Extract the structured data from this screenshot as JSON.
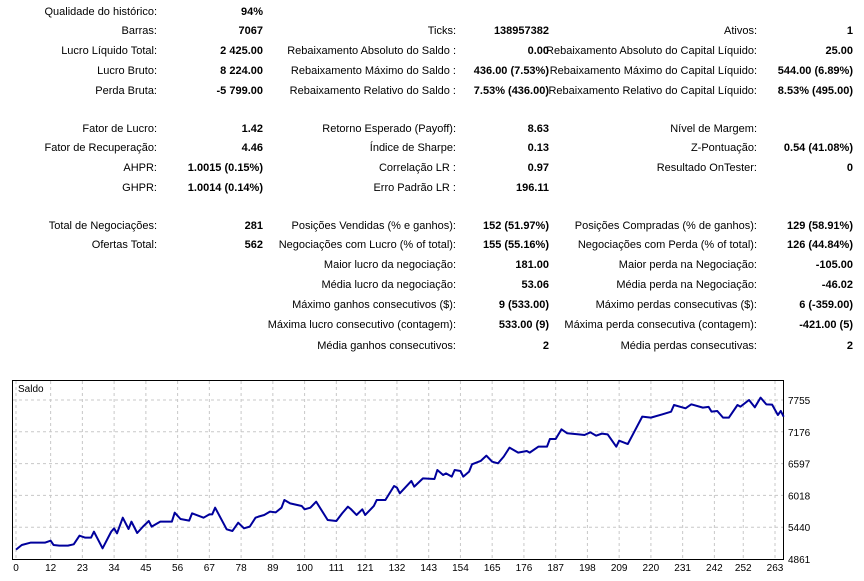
{
  "stats_rows": [
    {
      "l1": "Qualidade do histórico:",
      "v1": "94%",
      "l2": "",
      "v2": "",
      "l3": "",
      "v3": ""
    },
    {
      "l1": "Barras:",
      "v1": "7067",
      "l2": "Ticks:",
      "v2": "138957382",
      "l3": "Ativos:",
      "v3": "1"
    },
    {
      "l1": "Lucro Líquido Total:",
      "v1": "2 425.00",
      "l2": "Rebaixamento Absoluto do Saldo :",
      "v2": "0.00",
      "l3": "Rebaixamento Absoluto do Capital Líquido:",
      "v3": "25.00"
    },
    {
      "l1": "Lucro Bruto:",
      "v1": "8 224.00",
      "l2": "Rebaixamento Máximo do Saldo :",
      "v2": "436.00 (7.53%)",
      "l3": "Rebaixamento Máximo do Capital Líquido:",
      "v3": "544.00 (6.89%)"
    },
    {
      "l1": "Perda Bruta:",
      "v1": "-5 799.00",
      "l2": "Rebaixamento Relativo do Saldo :",
      "v2": "7.53% (436.00)",
      "l3": "Rebaixamento Relativo do Capital Líquido:",
      "v3": "8.53% (495.00)"
    },
    {
      "l1": "Fator de Lucro:",
      "v1": "1.42",
      "l2": "Retorno Esperado (Payoff):",
      "v2": "8.63",
      "l3": "Nível de Margem:",
      "v3": ""
    },
    {
      "l1": "Fator de Recuperação:",
      "v1": "4.46",
      "l2": "Índice de Sharpe:",
      "v2": "0.13",
      "l3": "Z-Pontuação:",
      "v3": "0.54 (41.08%)"
    },
    {
      "l1": "AHPR:",
      "v1": "1.0015 (0.15%)",
      "l2": "Correlação LR :",
      "v2": "0.97",
      "l3": "Resultado OnTester:",
      "v3": "0"
    },
    {
      "l1": "GHPR:",
      "v1": "1.0014 (0.14%)",
      "l2": "Erro Padrão LR :",
      "v2": "196.11",
      "l3": "",
      "v3": ""
    },
    {
      "l1": "Total de Negociações:",
      "v1": "281",
      "l2": "Posições Vendidas (% e ganhos):",
      "v2": "152 (51.97%)",
      "l3": "Posições Compradas (% de ganhos):",
      "v3": "129 (58.91%)"
    },
    {
      "l1": "Ofertas Total:",
      "v1": "562",
      "l2": "Negociações com Lucro (% of total):",
      "v2": "155 (55.16%)",
      "l3": "Negociações com Perda (% of total):",
      "v3": "126 (44.84%)"
    },
    {
      "l1": "",
      "v1": "",
      "l2": "Maior lucro da negociação:",
      "v2": "181.00",
      "l3": "Maior perda na Negociação:",
      "v3": "-105.00"
    },
    {
      "l1": "",
      "v1": "",
      "l2": "Média lucro da negociação:",
      "v2": "53.06",
      "l3": "Média perda na Negociação:",
      "v3": "-46.02"
    },
    {
      "l1": "",
      "v1": "",
      "l2": "Máximo ganhos consecutivos ($):",
      "v2": "9 (533.00)",
      "l3": "Máximo perdas consecutivas ($):",
      "v3": "6 (-359.00)"
    },
    {
      "l1": "",
      "v1": "",
      "l2": "Máxima lucro consecutivo (contagem):",
      "v2": "533.00 (9)",
      "l3": "Máxima perda consecutiva (contagem):",
      "v3": "-421.00 (5)"
    },
    {
      "l1": "",
      "v1": "",
      "l2": "Média ganhos consecutivos:",
      "v2": "2",
      "l3": "Média perdas consecutivas:",
      "v3": "2"
    }
  ],
  "chart_data": {
    "type": "line",
    "title": "Saldo",
    "line_color": "#00009c",
    "x_ticks": [
      0,
      12,
      23,
      34,
      45,
      56,
      67,
      78,
      89,
      100,
      111,
      121,
      132,
      143,
      154,
      165,
      176,
      187,
      198,
      209,
      220,
      231,
      242,
      252,
      263
    ],
    "y_ticks": [
      4861,
      5440,
      6018,
      6597,
      7176,
      7755
    ],
    "xlim": [
      0,
      263
    ],
    "ylim": [
      4861,
      7755
    ],
    "points": [
      [
        0,
        5031
      ],
      [
        2,
        5116
      ],
      [
        5,
        5158
      ],
      [
        10,
        5158
      ],
      [
        12,
        5195
      ],
      [
        13,
        5116
      ],
      [
        15,
        5104
      ],
      [
        18,
        5104
      ],
      [
        20,
        5128
      ],
      [
        22,
        5286
      ],
      [
        24,
        5249
      ],
      [
        26,
        5249
      ],
      [
        27,
        5359
      ],
      [
        30,
        5055
      ],
      [
        33,
        5359
      ],
      [
        34,
        5419
      ],
      [
        35,
        5328
      ],
      [
        37,
        5613
      ],
      [
        39,
        5407
      ],
      [
        40,
        5541
      ],
      [
        42,
        5334
      ],
      [
        44,
        5450
      ],
      [
        46,
        5553
      ],
      [
        47,
        5450
      ],
      [
        50,
        5541
      ],
      [
        54,
        5541
      ],
      [
        55,
        5704
      ],
      [
        57,
        5589
      ],
      [
        60,
        5559
      ],
      [
        61,
        5692
      ],
      [
        65,
        5613
      ],
      [
        67,
        5674
      ],
      [
        68,
        5674
      ],
      [
        69,
        5795
      ],
      [
        73,
        5401
      ],
      [
        75,
        5371
      ],
      [
        77,
        5522
      ],
      [
        79,
        5419
      ],
      [
        81,
        5450
      ],
      [
        83,
        5613
      ],
      [
        84,
        5632
      ],
      [
        86,
        5662
      ],
      [
        88,
        5723
      ],
      [
        90,
        5710
      ],
      [
        92,
        5795
      ],
      [
        93,
        5935
      ],
      [
        95,
        5874
      ],
      [
        99,
        5826
      ],
      [
        100,
        5765
      ],
      [
        102,
        5795
      ],
      [
        104,
        5905
      ],
      [
        108,
        5571
      ],
      [
        111,
        5553
      ],
      [
        113,
        5692
      ],
      [
        115,
        5813
      ],
      [
        116,
        5771
      ],
      [
        118,
        5662
      ],
      [
        120,
        5765
      ],
      [
        121,
        5662
      ],
      [
        124,
        5826
      ],
      [
        125,
        5935
      ],
      [
        128,
        5935
      ],
      [
        131,
        6190
      ],
      [
        132,
        6160
      ],
      [
        133,
        6056
      ],
      [
        137,
        6281
      ],
      [
        138,
        6178
      ],
      [
        141,
        6329
      ],
      [
        145,
        6317
      ],
      [
        146,
        6481
      ],
      [
        148,
        6390
      ],
      [
        149,
        6420
      ],
      [
        151,
        6360
      ],
      [
        152,
        6481
      ],
      [
        154,
        6463
      ],
      [
        155,
        6360
      ],
      [
        157,
        6451
      ],
      [
        158,
        6584
      ],
      [
        161,
        6645
      ],
      [
        163,
        6742
      ],
      [
        165,
        6632
      ],
      [
        167,
        6602
      ],
      [
        169,
        6724
      ],
      [
        171,
        6888
      ],
      [
        174,
        6797
      ],
      [
        177,
        6827
      ],
      [
        178,
        6797
      ],
      [
        181,
        6906
      ],
      [
        184,
        6906
      ],
      [
        185,
        7045
      ],
      [
        187,
        7045
      ],
      [
        189,
        7221
      ],
      [
        191,
        7149
      ],
      [
        195,
        7130
      ],
      [
        197,
        7118
      ],
      [
        199,
        7167
      ],
      [
        201,
        7106
      ],
      [
        203,
        7143
      ],
      [
        205,
        7130
      ],
      [
        208,
        6906
      ],
      [
        209,
        7015
      ],
      [
        212,
        6954
      ],
      [
        217,
        7452
      ],
      [
        220,
        7434
      ],
      [
        224,
        7495
      ],
      [
        227,
        7543
      ],
      [
        228,
        7664
      ],
      [
        232,
        7604
      ],
      [
        234,
        7676
      ],
      [
        238,
        7616
      ],
      [
        240,
        7630
      ],
      [
        241,
        7543
      ],
      [
        243,
        7555
      ],
      [
        245,
        7434
      ],
      [
        247,
        7434
      ],
      [
        250,
        7664
      ],
      [
        251,
        7634
      ],
      [
        254,
        7755
      ],
      [
        256,
        7622
      ],
      [
        258,
        7798
      ],
      [
        260,
        7676
      ],
      [
        262,
        7670
      ],
      [
        264,
        7482
      ],
      [
        265,
        7555
      ],
      [
        266,
        7452
      ]
    ]
  }
}
